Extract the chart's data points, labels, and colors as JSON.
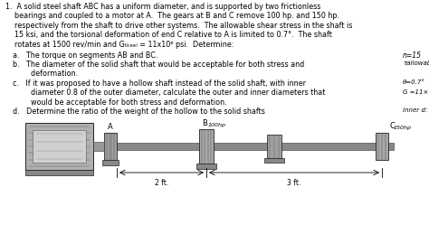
{
  "bg_color": "#ffffff",
  "text_color": "#000000",
  "intro_lines": [
    "1.  A solid steel shaft ABC has a uniform diameter, and is supported by two frictionless",
    "    bearings and coupled to a motor at A.  The gears at B and C remove 100 hp. and 150 hp.",
    "    respectively from the shaft to drive other systems.  The allowable shear stress in the shaft is",
    "    15 ksi, and the torsional deformation of end C relative to A is limited to 0.7°.  The shaft",
    "    rotates at 1500 rev/min and Gₜₖₑₑₗ = 11x10⁶ psi.  Determine:"
  ],
  "item_a": "a.   The torque on segments AB and BC.",
  "item_b_1": "b.   The diameter of the solid shaft that would be acceptable for both stress and",
  "item_b_2": "        deformation.",
  "item_c_1": "c.   If it was proposed to have a hollow shaft instead of the solid shaft, with inner",
  "item_c_2": "        diameter 0.8 of the outer diameter, calculate the outer and inner diameters that",
  "item_c_3": "        would be acceptable for both stress and deformation.",
  "item_d": "d.   Determine the ratio of the weight of the hollow to the solid shafts",
  "ann_n15": "n=15",
  "ann_tau": "τallowable",
  "ann_theta": "θ=0.7°",
  "ann_g": "G =11×",
  "ann_inner": "inner d:",
  "label_A": "A",
  "label_B": "B",
  "label_B_hp": "100hp",
  "label_C": "C",
  "label_C_hp": "150hp",
  "dim_2ft": "2 ft.",
  "dim_3ft": "3 ft.",
  "shaft_color": "#888888",
  "motor_color": "#aaaaaa",
  "bearing_color": "#999999",
  "dark_color": "#555555",
  "base_color": "#777777"
}
